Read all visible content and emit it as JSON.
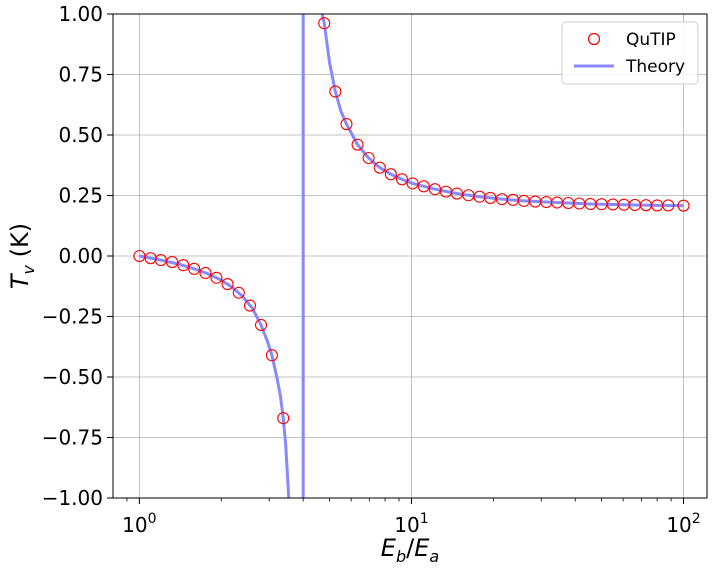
{
  "chart_data": {
    "type": "scatter",
    "title": "",
    "xlabel": {
      "base": "E",
      "base_sub": "b",
      "sep": "/",
      "base2": "E",
      "base2_sub": "a"
    },
    "ylabel": {
      "base": "T",
      "sub": "v",
      "unit": " (K)"
    },
    "xscale": "log",
    "xlim": [
      0.8,
      122
    ],
    "ylim": [
      -1.0,
      1.0
    ],
    "grid": true,
    "legend_position": "top-right",
    "x_ticks": [
      {
        "value": 1,
        "base": "10",
        "exp": "0"
      },
      {
        "value": 10,
        "base": "10",
        "exp": "1"
      },
      {
        "value": 100,
        "base": "10",
        "exp": "2"
      }
    ],
    "y_ticks": [
      {
        "value": -1.0,
        "label": "−1.00"
      },
      {
        "value": -0.75,
        "label": "−0.75"
      },
      {
        "value": -0.5,
        "label": "−0.50"
      },
      {
        "value": -0.25,
        "label": "−0.25"
      },
      {
        "value": 0.0,
        "label": "0.00"
      },
      {
        "value": 0.25,
        "label": "0.25"
      },
      {
        "value": 0.5,
        "label": "0.50"
      },
      {
        "value": 0.75,
        "label": "0.75"
      },
      {
        "value": 1.0,
        "label": "1.00"
      }
    ],
    "series": [
      {
        "name": "QuTIP",
        "kind": "markers",
        "marker": "open-circle",
        "color": "#ff0000",
        "points": [
          [
            1.0,
            0.0
          ],
          [
            1.1,
            -0.009
          ],
          [
            1.2,
            -0.017
          ],
          [
            1.32,
            -0.025
          ],
          [
            1.45,
            -0.038
          ],
          [
            1.59,
            -0.053
          ],
          [
            1.75,
            -0.07
          ],
          [
            1.92,
            -0.09
          ],
          [
            2.11,
            -0.116
          ],
          [
            2.32,
            -0.152
          ],
          [
            2.55,
            -0.205
          ],
          [
            2.8,
            -0.285
          ],
          [
            3.07,
            -0.41
          ],
          [
            3.38,
            -0.67
          ],
          [
            4.78,
            0.962
          ],
          [
            5.25,
            0.68
          ],
          [
            5.77,
            0.545
          ],
          [
            6.34,
            0.46
          ],
          [
            6.96,
            0.405
          ],
          [
            7.65,
            0.365
          ],
          [
            8.4,
            0.338
          ],
          [
            9.23,
            0.317
          ],
          [
            10.1,
            0.3
          ],
          [
            11.1,
            0.288
          ],
          [
            12.2,
            0.276
          ],
          [
            13.4,
            0.266
          ],
          [
            14.7,
            0.258
          ],
          [
            16.2,
            0.251
          ],
          [
            17.8,
            0.245
          ],
          [
            19.5,
            0.24
          ],
          [
            21.5,
            0.235
          ],
          [
            23.6,
            0.232
          ],
          [
            25.9,
            0.228
          ],
          [
            28.5,
            0.225
          ],
          [
            31.3,
            0.223
          ],
          [
            34.3,
            0.221
          ],
          [
            37.7,
            0.219
          ],
          [
            41.4,
            0.217
          ],
          [
            45.5,
            0.215
          ],
          [
            50.0,
            0.214
          ],
          [
            55.0,
            0.213
          ],
          [
            60.4,
            0.212
          ],
          [
            66.3,
            0.211
          ],
          [
            72.8,
            0.21
          ],
          [
            80.0,
            0.209
          ],
          [
            87.9,
            0.209
          ],
          [
            100.0,
            0.208
          ]
        ]
      },
      {
        "name": "Theory",
        "kind": "line",
        "color": "#8888ff",
        "segments": [
          [
            [
              1.0,
              0.0
            ],
            [
              1.2,
              -0.017
            ],
            [
              1.4,
              -0.034
            ],
            [
              1.6,
              -0.054
            ],
            [
              1.8,
              -0.075
            ],
            [
              2.0,
              -0.1
            ],
            [
              2.2,
              -0.13
            ],
            [
              2.4,
              -0.168
            ],
            [
              2.6,
              -0.215
            ],
            [
              2.8,
              -0.285
            ],
            [
              2.95,
              -0.35
            ],
            [
              3.07,
              -0.41
            ],
            [
              3.2,
              -0.5
            ],
            [
              3.3,
              -0.58
            ],
            [
              3.38,
              -0.67
            ],
            [
              3.45,
              -0.78
            ],
            [
              3.5,
              -0.9
            ],
            [
              3.54,
              -1.0
            ]
          ],
          [
            [
              4.0,
              -1.0
            ],
            [
              4.0,
              1.0
            ]
          ],
          [
            [
              4.7,
              1.0
            ],
            [
              4.78,
              0.962
            ],
            [
              5.0,
              0.8
            ],
            [
              5.25,
              0.68
            ],
            [
              5.5,
              0.6
            ],
            [
              5.77,
              0.545
            ],
            [
              6.34,
              0.46
            ],
            [
              6.96,
              0.405
            ],
            [
              7.65,
              0.365
            ],
            [
              8.4,
              0.338
            ],
            [
              9.23,
              0.317
            ],
            [
              10.1,
              0.3
            ],
            [
              12.2,
              0.276
            ],
            [
              14.7,
              0.258
            ],
            [
              17.8,
              0.245
            ],
            [
              21.5,
              0.235
            ],
            [
              25.9,
              0.228
            ],
            [
              31.3,
              0.223
            ],
            [
              37.7,
              0.219
            ],
            [
              45.5,
              0.215
            ],
            [
              55.0,
              0.213
            ],
            [
              66.3,
              0.211
            ],
            [
              80.0,
              0.209
            ],
            [
              100.0,
              0.208
            ]
          ]
        ]
      }
    ]
  }
}
